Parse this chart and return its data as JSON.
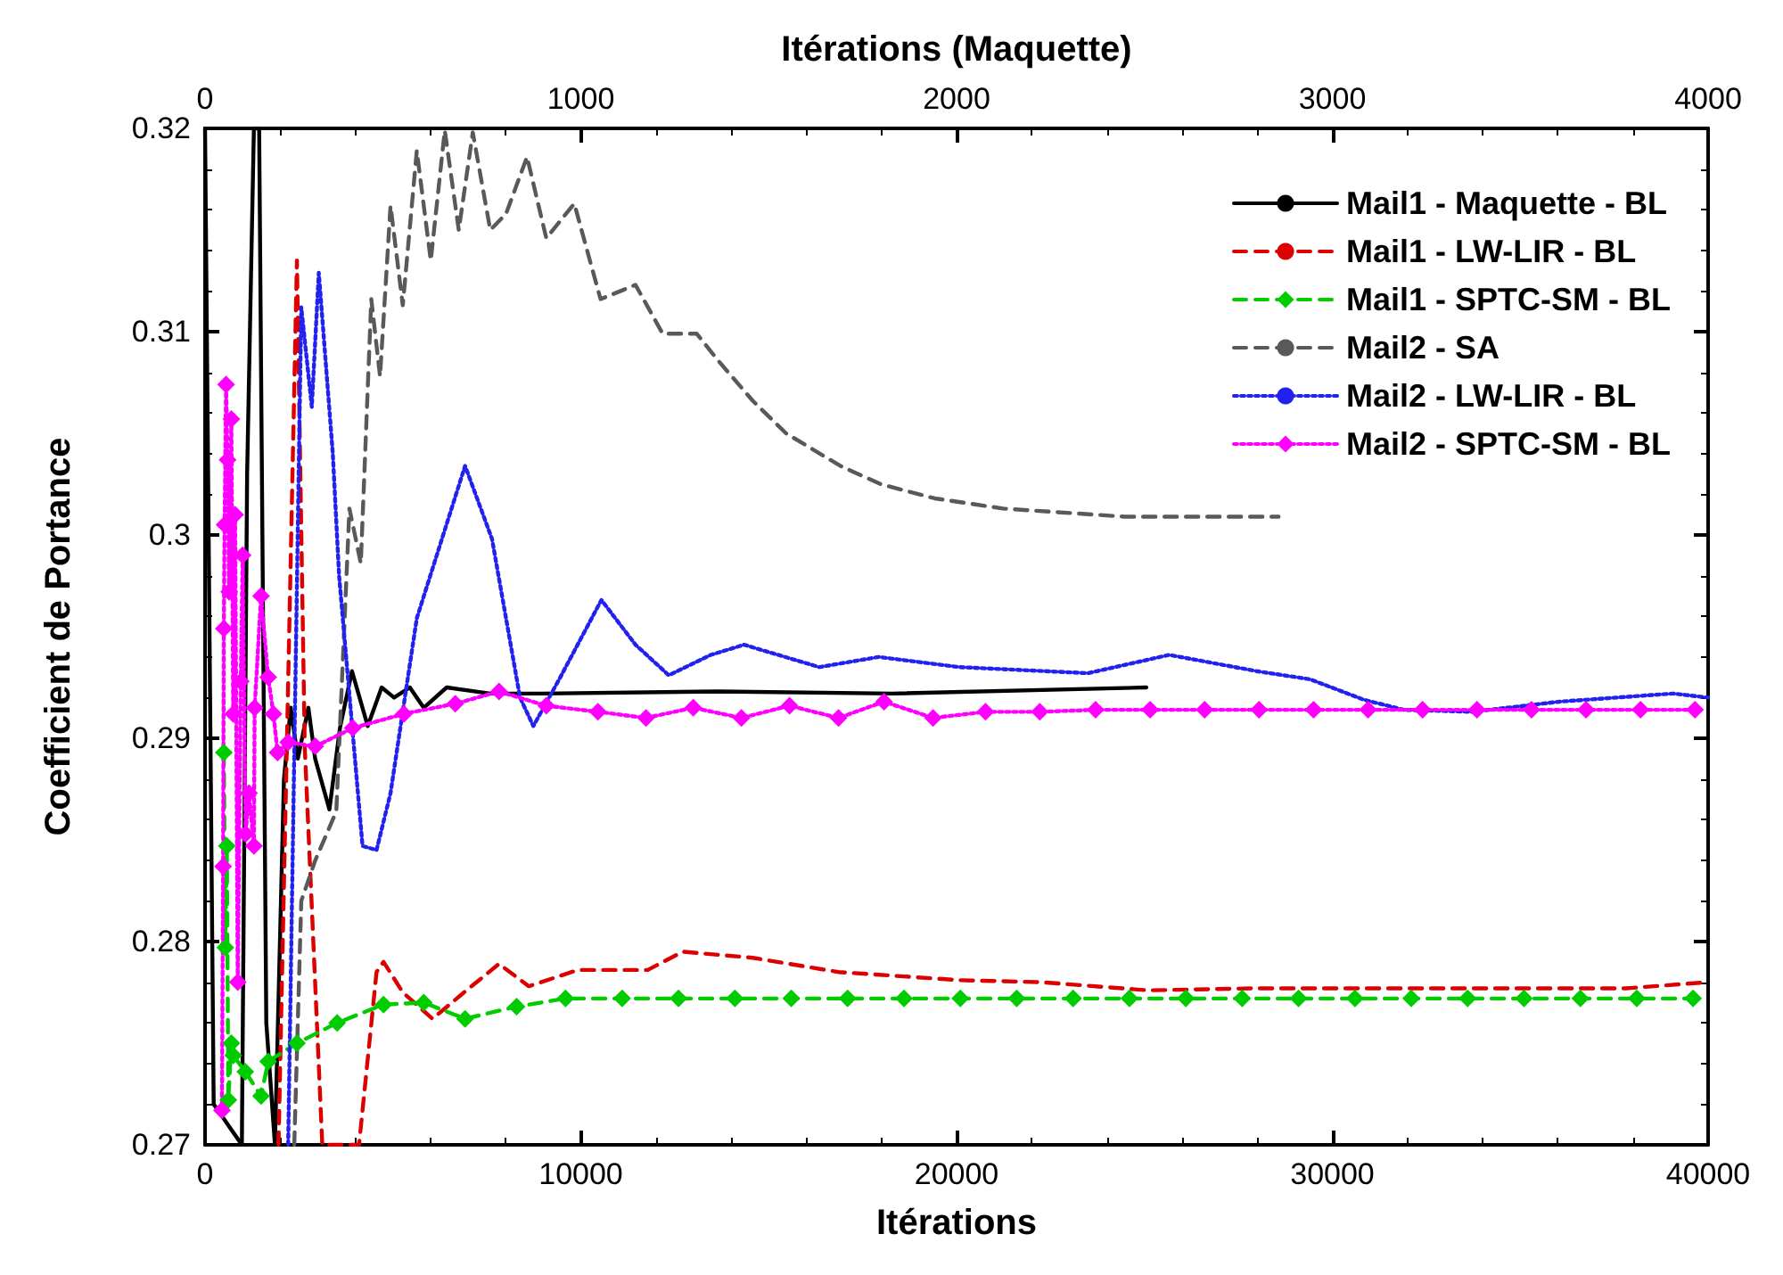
{
  "chart_data": {
    "type": "line",
    "xlabel": "Itérations",
    "x2label": "Itérations (Maquette)",
    "ylabel": "Coefficient de Portance",
    "xlim": [
      0,
      40000
    ],
    "xticks": [
      0,
      10000,
      20000,
      30000,
      40000
    ],
    "x2lim": [
      0,
      4000
    ],
    "x2ticks": [
      0,
      1000,
      2000,
      3000,
      4000
    ],
    "ylim": [
      0.27,
      0.32
    ],
    "yticks": [
      0.27,
      0.28,
      0.29,
      0.3,
      0.31,
      0.32
    ],
    "grid": false,
    "legend": "top right",
    "series": [
      {
        "name": "Mail1 - Maquette - BL",
        "color": "#000000",
        "axis": "x2",
        "line_style": "solid",
        "marker": "none",
        "x": [
          0,
          23,
          98,
          112,
          130,
          144,
          163,
          186,
          210,
          228,
          247,
          275,
          293,
          331,
          359,
          391,
          433,
          470,
          503,
          545,
          582,
          643,
          759,
          899,
          1364,
          1830,
          2505
        ],
        "values": [
          0.32,
          0.272,
          0.27,
          0.303,
          0.32,
          0.32,
          0.276,
          0.27,
          0.288,
          0.2915,
          0.289,
          0.2915,
          0.289,
          0.2865,
          0.2905,
          0.2933,
          0.2906,
          0.2925,
          0.292,
          0.2925,
          0.2915,
          0.2925,
          0.2922,
          0.2922,
          0.2923,
          0.2922,
          0.2925
        ]
      },
      {
        "name": "Mail1 - LW-LIR - BL",
        "color": "#dd0000",
        "line_style": "dashed",
        "marker": "none",
        "x": [
          1956,
          2445,
          2655,
          3120,
          3540,
          4098,
          4564,
          4750,
          5262,
          6054,
          6892,
          7824,
          8615,
          9919,
          11782,
          12713,
          14576,
          16858,
          20071,
          22260,
          25101,
          27988,
          37815,
          40000
        ],
        "values": [
          0.27,
          0.3135,
          0.2895,
          0.27,
          0.27,
          0.27,
          0.2785,
          0.279,
          0.2775,
          0.2762,
          0.2775,
          0.2789,
          0.2778,
          0.2786,
          0.2786,
          0.2795,
          0.2792,
          0.2785,
          0.2781,
          0.278,
          0.2776,
          0.2777,
          0.2777,
          0.278
        ]
      },
      {
        "name": "Mail1 - SPTC-SM - BL",
        "color": "#00cc00",
        "line_style": "dashed",
        "marker": "diamond",
        "x": [
          500,
          540,
          580,
          620,
          700,
          750,
          1070,
          1490,
          1680,
          2445,
          3516,
          4750,
          5821,
          6920,
          8290,
          9593,
          11100,
          12600,
          14100,
          15600,
          17100,
          18600,
          20100,
          21600,
          23100,
          24600,
          26100,
          27600,
          29100,
          30600,
          32100,
          33600,
          35100,
          36600,
          38100,
          39600
        ],
        "values": [
          0.2893,
          0.2797,
          0.2847,
          0.2722,
          0.275,
          0.2744,
          0.2736,
          0.2724,
          0.2741,
          0.275,
          0.276,
          0.2769,
          0.277,
          0.2762,
          0.2768,
          0.2772,
          0.2772,
          0.2772,
          0.2772,
          0.2772,
          0.2772,
          0.2772,
          0.2772,
          0.2772,
          0.2772,
          0.2772,
          0.2772,
          0.2772,
          0.2772,
          0.2772,
          0.2772,
          0.2772,
          0.2772,
          0.2772,
          0.2772,
          0.2772
        ]
      },
      {
        "name": "Mail2 - SA",
        "color": "#595959",
        "line_style": "dashed",
        "marker": "none",
        "x": [
          2375,
          2561,
          2934,
          3493,
          3842,
          4145,
          4424,
          4657,
          4936,
          5262,
          5635,
          6007,
          6380,
          6752,
          7125,
          7591,
          8010,
          8569,
          9081,
          9826,
          10525,
          11456,
          12178,
          13086,
          13645,
          14576,
          15461,
          16905,
          17976,
          19420,
          21236,
          24473,
          28571
        ],
        "values": [
          0.27,
          0.282,
          0.284,
          0.2864,
          0.3013,
          0.2986,
          0.3116,
          0.3078,
          0.3162,
          0.3113,
          0.3189,
          0.3135,
          0.3199,
          0.315,
          0.3198,
          0.315,
          0.3158,
          0.3186,
          0.3146,
          0.3163,
          0.3116,
          0.3123,
          0.3099,
          0.3099,
          0.3086,
          0.3066,
          0.305,
          0.3034,
          0.3025,
          0.3018,
          0.3013,
          0.3009,
          0.3009
        ]
      },
      {
        "name": "Mail2 - LW-LIR - BL",
        "color": "#2222ee",
        "line_style": "dotted",
        "marker": "none",
        "x": [
          2212,
          2561,
          2841,
          3027,
          3400,
          3567,
          4191,
          4564,
          4936,
          5635,
          6920,
          7637,
          8383,
          8737,
          9454,
          10548,
          11456,
          12341,
          13459,
          14344,
          16346,
          17929,
          20071,
          23494,
          25660,
          27988,
          29409,
          30829,
          31900,
          33716,
          36045,
          39072,
          40000
        ],
        "values": [
          0.27,
          0.3112,
          0.3063,
          0.3129,
          0.304,
          0.298,
          0.2847,
          0.2845,
          0.2873,
          0.2959,
          0.3034,
          0.2998,
          0.292,
          0.2906,
          0.293,
          0.2968,
          0.2946,
          0.2931,
          0.2941,
          0.2946,
          0.2935,
          0.294,
          0.2935,
          0.2932,
          0.2941,
          0.2933,
          0.2929,
          0.2919,
          0.2914,
          0.2913,
          0.2918,
          0.2922,
          0.292
        ]
      },
      {
        "name": "Mail2 - SPTC-SM - BL",
        "color": "#ff00ff",
        "line_style": "dotted",
        "marker": "diamond",
        "x": [
          450,
          480,
          500,
          520,
          560,
          600,
          640,
          700,
          750,
          800,
          870,
          950,
          1000,
          1080,
          1170,
          1300,
          1320,
          1490,
          1680,
          1820,
          1930,
          2212,
          2934,
          3930,
          5290,
          6660,
          7824,
          9081,
          10455,
          11735,
          12993,
          14274,
          15554,
          16858,
          18069,
          19374,
          20770,
          22214,
          23700,
          25150,
          26600,
          28050,
          29500,
          30950,
          32400,
          33850,
          35300,
          36750,
          38200,
          39650
        ],
        "values": [
          0.2717,
          0.2837,
          0.2954,
          0.3005,
          0.3074,
          0.3037,
          0.2972,
          0.3057,
          0.2912,
          0.301,
          0.278,
          0.2928,
          0.299,
          0.2853,
          0.2873,
          0.2847,
          0.2915,
          0.297,
          0.293,
          0.2912,
          0.2893,
          0.2898,
          0.2896,
          0.2905,
          0.2912,
          0.2917,
          0.2923,
          0.2916,
          0.2913,
          0.291,
          0.2915,
          0.291,
          0.2916,
          0.291,
          0.2918,
          0.291,
          0.2913,
          0.2913,
          0.2914,
          0.2914,
          0.2914,
          0.2914,
          0.2914,
          0.2914,
          0.2914,
          0.2914,
          0.2914,
          0.2914,
          0.2914,
          0.2914
        ]
      }
    ]
  }
}
